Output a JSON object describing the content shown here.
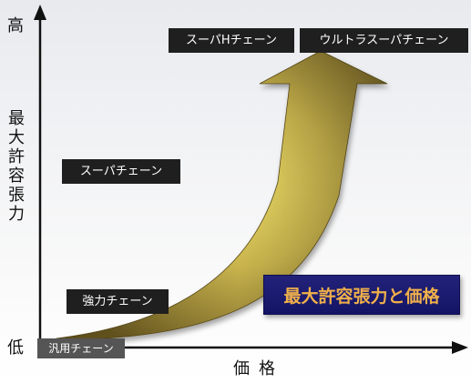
{
  "axes": {
    "y_high": "高",
    "y_low": "低",
    "y_title": "最大許容張力",
    "x_title": "価格"
  },
  "chain_types": {
    "general": "汎用チェーン",
    "strong": "強力チェーン",
    "super": "スーパチェーン",
    "super_h": "スーパHチェーン",
    "ultra_super": "ウルトラスーパチェーン"
  },
  "summary": "最大許容張力と価格",
  "colors": {
    "arrow_fill": "#e4d15a",
    "arrow_dark": "#6f5d22",
    "tag_bg": "#1f1f1f",
    "summary_bg": "#1b1b72",
    "summary_text": "#f0b04a"
  }
}
